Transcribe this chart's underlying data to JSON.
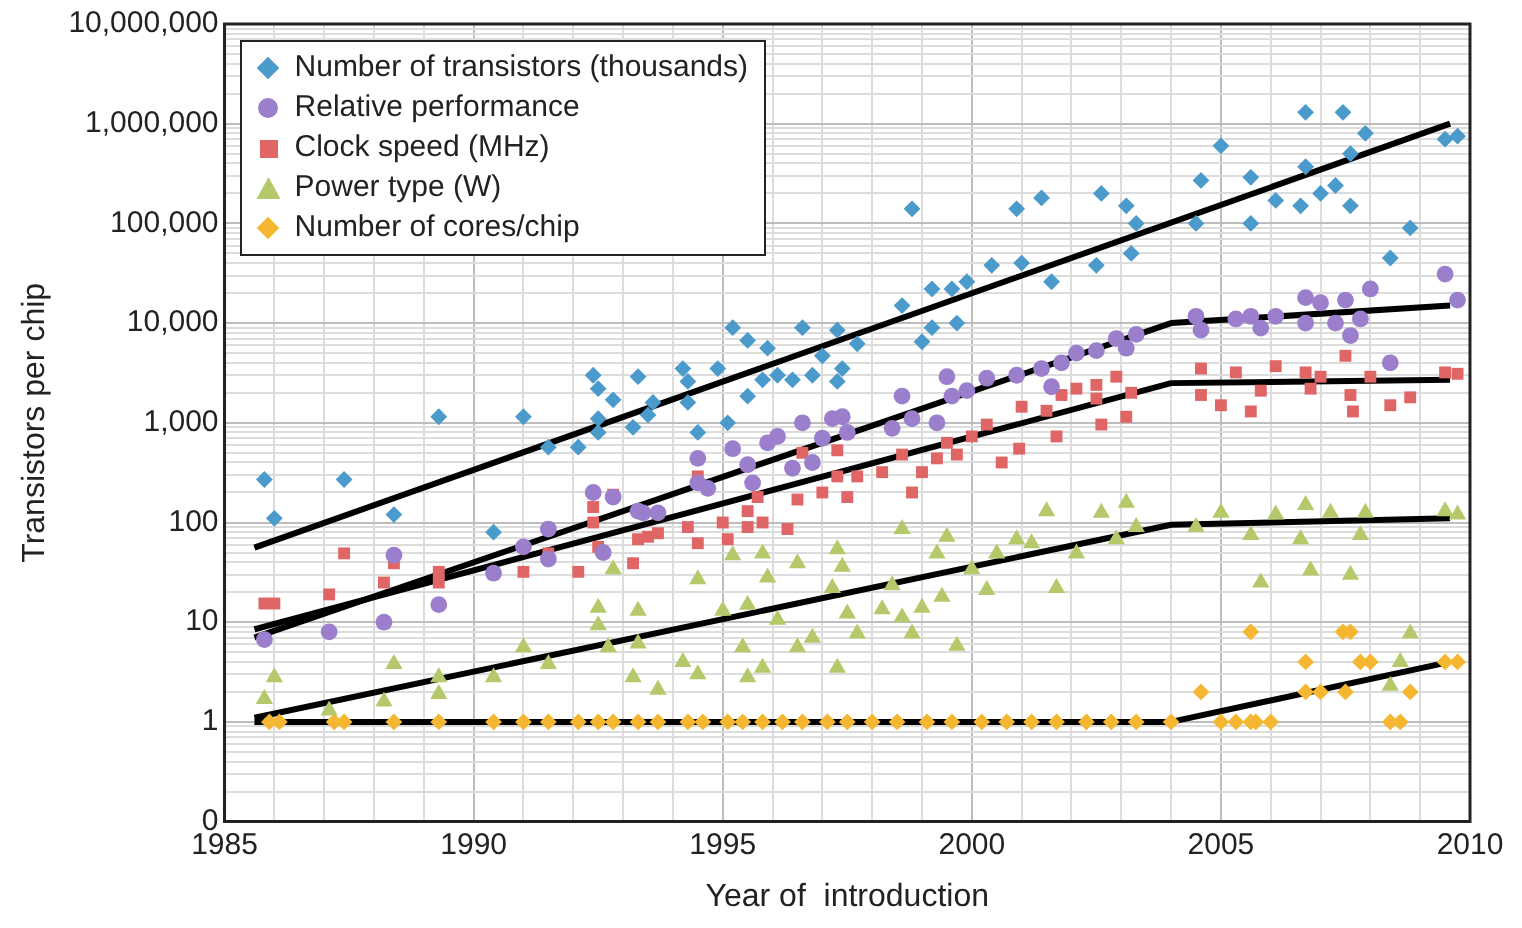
{
  "chart_data": {
    "type": "scatter",
    "xlabel": "Year of  introduction",
    "ylabel": "Transistors per chip",
    "log": "y",
    "grid": true,
    "legend": "top left",
    "xlim": [
      1985,
      2010
    ],
    "xticks": [
      1985,
      {
        "value": 1986,
        "label": null
      },
      {
        "value": 1987,
        "label": null
      },
      {
        "value": 1988,
        "label": null
      },
      {
        "value": 1989,
        "label": null
      },
      1990,
      {
        "value": 1991,
        "label": null
      },
      {
        "value": 1992,
        "label": null
      },
      {
        "value": 1993,
        "label": null
      },
      {
        "value": 1994,
        "label": null
      },
      1995,
      {
        "value": 1996,
        "label": null
      },
      {
        "value": 1997,
        "label": null
      },
      {
        "value": 1998,
        "label": null
      },
      {
        "value": 1999,
        "label": null
      },
      2000,
      {
        "value": 2001,
        "label": null
      },
      {
        "value": 2002,
        "label": null
      },
      {
        "value": 2003,
        "label": null
      },
      {
        "value": 2004,
        "label": null
      },
      2005,
      {
        "value": 2006,
        "label": null
      },
      {
        "value": 2007,
        "label": null
      },
      {
        "value": 2008,
        "label": null
      },
      {
        "value": 2009,
        "label": null
      },
      2010
    ],
    "ylim": [
      0.1,
      10000000
    ],
    "yticks": [
      {
        "value": 0.1,
        "label": "0"
      },
      {
        "value": 0.2,
        "label": null
      },
      {
        "value": 0.3,
        "label": null
      },
      {
        "value": 0.4,
        "label": null
      },
      {
        "value": 0.5,
        "label": null
      },
      {
        "value": 0.6,
        "label": null
      },
      {
        "value": 0.7,
        "label": null
      },
      {
        "value": 0.8,
        "label": null
      },
      {
        "value": 0.9,
        "label": null
      },
      1,
      {
        "value": 2,
        "label": null
      },
      {
        "value": 3,
        "label": null
      },
      {
        "value": 4,
        "label": null
      },
      {
        "value": 5,
        "label": null
      },
      {
        "value": 6,
        "label": null
      },
      {
        "value": 7,
        "label": null
      },
      {
        "value": 8,
        "label": null
      },
      {
        "value": 9,
        "label": null
      },
      10,
      {
        "value": 20,
        "label": null
      },
      {
        "value": 30,
        "label": null
      },
      {
        "value": 40,
        "label": null
      },
      {
        "value": 50,
        "label": null
      },
      {
        "value": 60,
        "label": null
      },
      {
        "value": 70,
        "label": null
      },
      {
        "value": 80,
        "label": null
      },
      {
        "value": 90,
        "label": null
      },
      100,
      {
        "value": 200,
        "label": null
      },
      {
        "value": 300,
        "label": null
      },
      {
        "value": 400,
        "label": null
      },
      {
        "value": 500,
        "label": null
      },
      {
        "value": 600,
        "label": null
      },
      {
        "value": 700,
        "label": null
      },
      {
        "value": 800,
        "label": null
      },
      {
        "value": 900,
        "label": null
      },
      {
        "value": 1000,
        "label": "1,000"
      },
      {
        "value": 2000,
        "label": null
      },
      {
        "value": 3000,
        "label": null
      },
      {
        "value": 4000,
        "label": null
      },
      {
        "value": 5000,
        "label": null
      },
      {
        "value": 6000,
        "label": null
      },
      {
        "value": 7000,
        "label": null
      },
      {
        "value": 8000,
        "label": null
      },
      {
        "value": 9000,
        "label": null
      },
      {
        "value": 10000,
        "label": "10,000"
      },
      {
        "value": 20000,
        "label": null
      },
      {
        "value": 30000,
        "label": null
      },
      {
        "value": 40000,
        "label": null
      },
      {
        "value": 50000,
        "label": null
      },
      {
        "value": 60000,
        "label": null
      },
      {
        "value": 70000,
        "label": null
      },
      {
        "value": 80000,
        "label": null
      },
      {
        "value": 90000,
        "label": null
      },
      {
        "value": 100000,
        "label": "100,000"
      },
      {
        "value": 200000,
        "label": null
      },
      {
        "value": 300000,
        "label": null
      },
      {
        "value": 400000,
        "label": null
      },
      {
        "value": 500000,
        "label": null
      },
      {
        "value": 600000,
        "label": null
      },
      {
        "value": 700000,
        "label": null
      },
      {
        "value": 800000,
        "label": null
      },
      {
        "value": 900000,
        "label": null
      },
      {
        "value": 1000000,
        "label": "1,000,000"
      },
      {
        "value": 2000000,
        "label": null
      },
      {
        "value": 3000000,
        "label": null
      },
      {
        "value": 4000000,
        "label": null
      },
      {
        "value": 5000000,
        "label": null
      },
      {
        "value": 6000000,
        "label": null
      },
      {
        "value": 7000000,
        "label": null
      },
      {
        "value": 8000000,
        "label": null
      },
      {
        "value": 9000000,
        "label": null
      },
      {
        "value": 10000000,
        "label": "10,000,000"
      }
    ],
    "series": [
      {
        "name": "Number of transistors (thousands)",
        "color": "#4a9acb",
        "marker": "diamond",
        "x": [
          1985.8,
          1986.0,
          1987.4,
          1988.4,
          1989.3,
          1990.4,
          1991.0,
          1991.5,
          1992.1,
          1992.4,
          1992.5,
          1992.5,
          1992.5,
          1992.8,
          1993.2,
          1993.3,
          1993.5,
          1993.6,
          1994.2,
          1994.3,
          1994.3,
          1994.5,
          1994.9,
          1995.1,
          1995.2,
          1995.5,
          1995.5,
          1995.8,
          1995.9,
          1996.1,
          1996.4,
          1996.6,
          1996.8,
          1997.0,
          1997.3,
          1997.3,
          1997.4,
          1997.7,
          1998.6,
          1998.8,
          1999.0,
          1999.2,
          1999.2,
          1999.6,
          1999.7,
          1999.9,
          2000.4,
          2000.9,
          2001.0,
          2001.4,
          2001.6,
          2002.5,
          2002.6,
          2003.1,
          2003.2,
          2003.3,
          2004.5,
          2004.6,
          2005.0,
          2005.6,
          2005.6,
          2006.1,
          2006.6,
          2006.7,
          2006.7,
          2007.0,
          2007.3,
          2007.45,
          2007.6,
          2007.6,
          2007.9,
          2008.4,
          2008.8,
          2009.5,
          2009.75
        ],
        "values": [
          270,
          110,
          270,
          120,
          1150,
          80,
          1150,
          570,
          570,
          3000,
          2200,
          1100,
          800,
          1700,
          900,
          2900,
          1200,
          1600,
          3500,
          2600,
          1600,
          800,
          3500,
          1000,
          9000,
          6700,
          1850,
          2700,
          5600,
          3000,
          2700,
          9000,
          3000,
          4700,
          8500,
          2600,
          3500,
          6200,
          15000,
          140000,
          6500,
          22000,
          9000,
          22000,
          10000,
          26000,
          38000,
          140000,
          40000,
          180000,
          26000,
          38000,
          200000,
          150000,
          50000,
          100000,
          100000,
          270000,
          600000,
          290000,
          100000,
          170000,
          150000,
          1300000,
          370000,
          200000,
          240000,
          1300000,
          150000,
          500000,
          800000,
          45000,
          90000,
          700000,
          750000
        ]
      },
      {
        "name": "Relative performance",
        "color": "#9b7fcc",
        "marker": "circle",
        "x": [
          1985.8,
          1987.1,
          1988.2,
          1988.4,
          1989.3,
          1990.4,
          1991.0,
          1991.5,
          1991.5,
          1992.4,
          1992.6,
          1992.8,
          1993.3,
          1993.4,
          1993.7,
          1994.5,
          1994.5,
          1994.7,
          1995.2,
          1995.5,
          1995.6,
          1995.9,
          1996.1,
          1996.4,
          1996.6,
          1996.8,
          1997.0,
          1997.2,
          1997.4,
          1997.5,
          1998.4,
          1998.6,
          1998.8,
          1999.3,
          1999.5,
          1999.6,
          1999.9,
          2000.3,
          2000.9,
          2001.4,
          2001.6,
          2001.8,
          2002.1,
          2002.5,
          2002.9,
          2003.1,
          2003.3,
          2004.5,
          2004.6,
          2005.3,
          2005.6,
          2005.8,
          2006.1,
          2006.7,
          2006.7,
          2007.0,
          2007.3,
          2007.5,
          2007.6,
          2007.8,
          2008.0,
          2008.4,
          2009.5,
          2009.75
        ],
        "values": [
          6.7,
          8,
          10,
          47,
          15,
          31,
          57,
          86,
          43,
          200,
          50,
          180,
          130,
          125,
          125,
          440,
          250,
          220,
          550,
          380,
          250,
          630,
          730,
          350,
          1000,
          400,
          700,
          1100,
          1150,
          800,
          880,
          1850,
          1100,
          1000,
          2900,
          1850,
          2100,
          2800,
          3000,
          3500,
          2300,
          4000,
          5000,
          5300,
          7000,
          5600,
          7700,
          11700,
          8500,
          11000,
          11700,
          8900,
          11700,
          18000,
          10000,
          16000,
          10000,
          17000,
          7500,
          11000,
          22000,
          4000,
          31000,
          17000
        ]
      },
      {
        "name": "Clock speed (MHz)",
        "color": "#e06666",
        "marker": "square",
        "x": [
          1985.8,
          1986.0,
          1987.1,
          1987.4,
          1988.2,
          1988.4,
          1989.3,
          1989.3,
          1991.0,
          1991.5,
          1992.1,
          1992.4,
          1992.4,
          1992.5,
          1992.8,
          1993.2,
          1993.3,
          1993.5,
          1993.7,
          1994.3,
          1994.5,
          1994.5,
          1995.0,
          1995.1,
          1995.5,
          1995.5,
          1995.7,
          1995.8,
          1996.3,
          1996.5,
          1996.6,
          1997.0,
          1997.3,
          1997.3,
          1997.5,
          1997.7,
          1998.2,
          1998.6,
          1998.8,
          1999.0,
          1999.3,
          1999.5,
          1999.7,
          2000.0,
          2000.3,
          2000.6,
          2000.95,
          2001.0,
          2001.5,
          2001.7,
          2001.8,
          2002.1,
          2002.5,
          2002.5,
          2002.6,
          2002.9,
          2003.1,
          2003.2,
          2004.6,
          2004.6,
          2005.0,
          2005.3,
          2005.6,
          2005.8,
          2006.1,
          2006.7,
          2006.8,
          2007.0,
          2007.5,
          2007.6,
          2007.65,
          2008.0,
          2008.4,
          2008.8,
          2009.5,
          2009.75
        ],
        "values": [
          15.4,
          15.4,
          19,
          49,
          25,
          39,
          32,
          25,
          32,
          49,
          32,
          143,
          100,
          57,
          190,
          39,
          68,
          72,
          78,
          90,
          290,
          62,
          100,
          68,
          90,
          130,
          180,
          100,
          86,
          170,
          500,
          200,
          290,
          530,
          180,
          290,
          320,
          480,
          200,
          320,
          440,
          630,
          480,
          730,
          960,
          400,
          550,
          1450,
          1320,
          730,
          1900,
          2200,
          2400,
          1750,
          960,
          2900,
          1150,
          2000,
          3500,
          1900,
          1500,
          3200,
          1300,
          2100,
          3700,
          3200,
          2200,
          2900,
          4700,
          1900,
          1300,
          2900,
          1500,
          1800,
          3200,
          3100
        ]
      },
      {
        "name": "Power type (W)",
        "color": "#b5c96a",
        "marker": "triangle",
        "x": [
          1985.8,
          1986.0,
          1987.1,
          1988.2,
          1988.4,
          1989.3,
          1989.3,
          1990.4,
          1991.0,
          1991.5,
          1992.5,
          1992.5,
          1992.7,
          1992.8,
          1993.2,
          1993.3,
          1993.3,
          1993.7,
          1994.2,
          1994.5,
          1994.5,
          1995.0,
          1995.2,
          1995.4,
          1995.5,
          1995.5,
          1995.8,
          1995.8,
          1995.9,
          1996.1,
          1996.5,
          1996.5,
          1996.8,
          1997.2,
          1997.3,
          1997.3,
          1997.4,
          1997.5,
          1997.7,
          1998.2,
          1998.4,
          1998.6,
          1998.6,
          1998.8,
          1999.0,
          1999.3,
          1999.4,
          1999.5,
          1999.7,
          2000.0,
          2000.3,
          2000.5,
          2000.9,
          2001.2,
          2001.5,
          2001.7,
          2002.1,
          2002.6,
          2002.9,
          2003.1,
          2003.3,
          2004.5,
          2005.0,
          2005.6,
          2005.8,
          2006.1,
          2006.6,
          2006.7,
          2006.8,
          2007.2,
          2007.6,
          2007.8,
          2007.9,
          2008.4,
          2008.6,
          2008.8,
          2009.5,
          2009.75
        ],
        "values": [
          1.7,
          2.8,
          1.3,
          1.6,
          3.8,
          2.8,
          1.9,
          2.8,
          5.6,
          3.8,
          14,
          9.3,
          5.6,
          34,
          2.8,
          13,
          6.1,
          2.1,
          4,
          27,
          3,
          13,
          47,
          5.6,
          15,
          2.8,
          49,
          3.5,
          28,
          10.6,
          39,
          5.6,
          7,
          22,
          54,
          3.5,
          36,
          12.2,
          7.7,
          13.5,
          23.5,
          86,
          11.2,
          7.7,
          14,
          49,
          18,
          72,
          5.8,
          34,
          21,
          49,
          68,
          62,
          130,
          22,
          49,
          125,
          68,
          158,
          90,
          90,
          125,
          75,
          25,
          120,
          68,
          150,
          33,
          125,
          30,
          75,
          125,
          2.3,
          4,
          7.7,
          130,
          120
        ]
      },
      {
        "name": "Number of cores/chip",
        "color": "#f5b731",
        "marker": "diamond",
        "x": [
          1985.9,
          1986.1,
          1987.2,
          1987.4,
          1988.4,
          1989.3,
          1990.4,
          1991.0,
          1991.5,
          1992.1,
          1992.5,
          1992.8,
          1993.3,
          1993.7,
          1994.3,
          1994.6,
          1995.1,
          1995.4,
          1995.8,
          1996.2,
          1996.6,
          1997.1,
          1997.5,
          1998.0,
          1998.5,
          1999.1,
          1999.6,
          2000.2,
          2000.7,
          2001.2,
          2001.7,
          2002.3,
          2002.8,
          2003.3,
          2004.0,
          2004.6,
          2005.0,
          2005.3,
          2005.6,
          2005.6,
          2005.7,
          2006.0,
          2006.7,
          2006.7,
          2007.0,
          2007.45,
          2007.5,
          2007.6,
          2007.8,
          2008.0,
          2008.4,
          2008.6,
          2008.8,
          2009.5,
          2009.75
        ],
        "values": [
          1,
          1,
          1,
          1,
          1,
          1,
          1,
          1,
          1,
          1,
          1,
          1,
          1,
          1,
          1,
          1,
          1,
          1,
          1,
          1,
          1,
          1,
          1,
          1,
          1,
          1,
          1,
          1,
          1,
          1,
          1,
          1,
          1,
          1,
          1,
          2,
          1,
          1,
          1,
          8,
          1,
          1,
          4,
          2,
          2,
          8,
          2,
          8,
          4,
          4,
          1,
          1,
          2,
          4,
          4
        ]
      },
      {
        "type": "line",
        "color": "#000000",
        "marker": "none",
        "line_style": "solid",
        "x": [
          1985.6,
          2009.6
        ],
        "values": [
          56,
          1000000
        ]
      },
      {
        "type": "line",
        "color": "#000000",
        "marker": "none",
        "line_style": "solid",
        "x": [
          1985.6,
          2004.0,
          2009.6
        ],
        "values": [
          7,
          10000,
          15000
        ]
      },
      {
        "type": "line",
        "color": "#000000",
        "marker": "none",
        "line_style": "solid",
        "x": [
          1985.6,
          2004.0,
          2009.6
        ],
        "values": [
          8.5,
          2500,
          2700
        ]
      },
      {
        "type": "line",
        "color": "#000000",
        "marker": "none",
        "line_style": "solid",
        "x": [
          1985.6,
          2004.0,
          2009.6
        ],
        "values": [
          1.1,
          95,
          110
        ]
      },
      {
        "type": "line",
        "color": "#000000",
        "marker": "none",
        "line_style": "solid",
        "x": [
          1985.6,
          2004.0,
          2009.6
        ],
        "values": [
          1,
          1,
          4
        ]
      }
    ]
  }
}
